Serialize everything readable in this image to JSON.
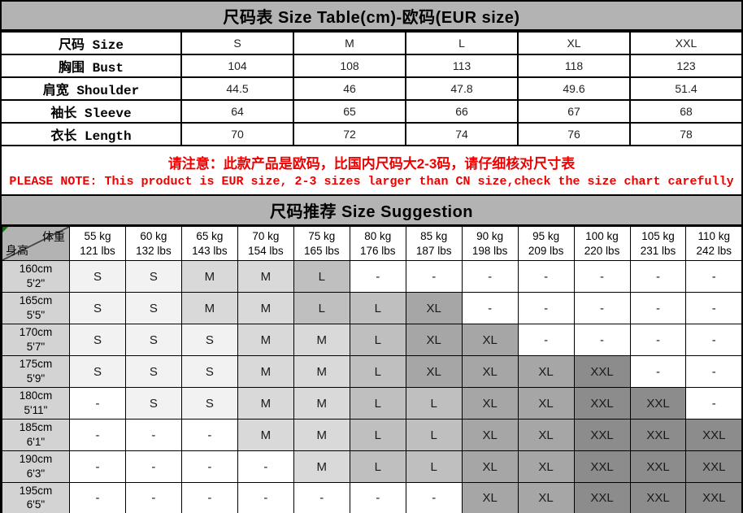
{
  "title": "尺码表 Size Table(cm)-欧码(EUR size)",
  "size_table": {
    "rows": [
      {
        "label": "尺码 Size",
        "values": [
          "S",
          "M",
          "L",
          "XL",
          "XXL"
        ]
      },
      {
        "label": "胸围 Bust",
        "values": [
          "104",
          "108",
          "113",
          "118",
          "123"
        ]
      },
      {
        "label": "肩宽 Shoulder",
        "values": [
          "44.5",
          "46",
          "47.8",
          "49.6",
          "51.4"
        ]
      },
      {
        "label": "袖长 Sleeve",
        "values": [
          "64",
          "65",
          "66",
          "67",
          "68"
        ]
      },
      {
        "label": "衣长 Length",
        "values": [
          "70",
          "72",
          "74",
          "76",
          "78"
        ]
      }
    ]
  },
  "notice": {
    "line_cn": "请注意：此款产品是欧码，比国内尺码大2-3码，请仔细核对尺寸表",
    "line_en": "PLEASE NOTE: This product is EUR size, 2-3 sizes larger than CN size,check the size chart carefully",
    "color": "#ee0000"
  },
  "suggestion": {
    "title": "尺码推荐 Size Suggestion",
    "corner": {
      "top_right": "体重",
      "bottom_left": "身高"
    },
    "weights": [
      {
        "kg": "55 kg",
        "lbs": "121 lbs"
      },
      {
        "kg": "60 kg",
        "lbs": "132 lbs"
      },
      {
        "kg": "65 kg",
        "lbs": "143 lbs"
      },
      {
        "kg": "70 kg",
        "lbs": "154 lbs"
      },
      {
        "kg": "75 kg",
        "lbs": "165 lbs"
      },
      {
        "kg": "80 kg",
        "lbs": "176 lbs"
      },
      {
        "kg": "85 kg",
        "lbs": "187 lbs"
      },
      {
        "kg": "90 kg",
        "lbs": "198 lbs"
      },
      {
        "kg": "95 kg",
        "lbs": "209 lbs"
      },
      {
        "kg": "100 kg",
        "lbs": "220 lbs"
      },
      {
        "kg": "105 kg",
        "lbs": "231 lbs"
      },
      {
        "kg": "110 kg",
        "lbs": "242 lbs"
      }
    ],
    "heights": [
      {
        "cm": "160cm",
        "ft": "5'2\""
      },
      {
        "cm": "165cm",
        "ft": "5'5\""
      },
      {
        "cm": "170cm",
        "ft": "5'7\""
      },
      {
        "cm": "175cm",
        "ft": "5'9\""
      },
      {
        "cm": "180cm",
        "ft": "5'11\""
      },
      {
        "cm": "185cm",
        "ft": "6'1\""
      },
      {
        "cm": "190cm",
        "ft": "6'3\""
      },
      {
        "cm": "195cm",
        "ft": "6'5\""
      }
    ],
    "matrix": [
      [
        "S",
        "S",
        "M",
        "M",
        "L",
        "-",
        "-",
        "-",
        "-",
        "-",
        "-",
        "-"
      ],
      [
        "S",
        "S",
        "M",
        "M",
        "L",
        "L",
        "XL",
        "-",
        "-",
        "-",
        "-",
        "-"
      ],
      [
        "S",
        "S",
        "S",
        "M",
        "M",
        "L",
        "XL",
        "XL",
        "-",
        "-",
        "-",
        "-"
      ],
      [
        "S",
        "S",
        "S",
        "M",
        "M",
        "L",
        "XL",
        "XL",
        "XL",
        "XXL",
        "-",
        "-"
      ],
      [
        "-",
        "S",
        "S",
        "M",
        "M",
        "L",
        "L",
        "XL",
        "XL",
        "XXL",
        "XXL",
        "-"
      ],
      [
        "-",
        "-",
        "-",
        "M",
        "M",
        "L",
        "L",
        "XL",
        "XL",
        "XXL",
        "XXL",
        "XXL"
      ],
      [
        "-",
        "-",
        "-",
        "-",
        "M",
        "L",
        "L",
        "XL",
        "XL",
        "XXL",
        "XXL",
        "XXL"
      ],
      [
        "-",
        "-",
        "-",
        "-",
        "-",
        "-",
        "-",
        "XL",
        "XL",
        "XXL",
        "XXL",
        "XXL"
      ]
    ],
    "size_colors": {
      "S": "#f2f2f2",
      "M": "#d9d9d9",
      "L": "#bfbfbf",
      "XL": "#a6a6a6",
      "XXL": "#8c8c8c",
      "-": "#ffffff"
    }
  },
  "colors": {
    "header_bg": "#b3b3b3",
    "height_label_bg": "#d3d3d3",
    "border": "#000000",
    "notice_red": "#ee0000",
    "corner_mark_green": "#007a00"
  }
}
